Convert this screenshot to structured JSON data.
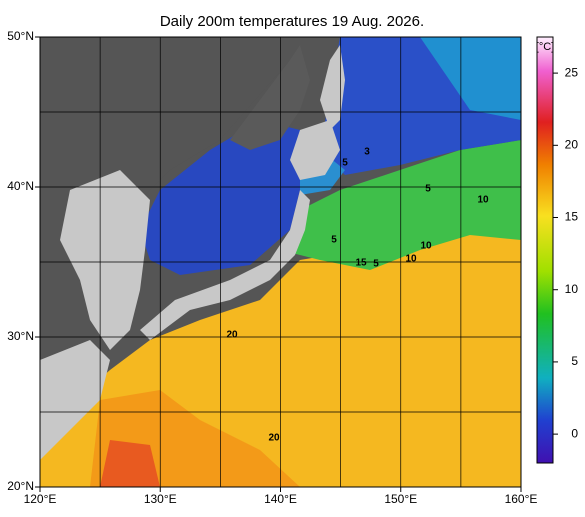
{
  "title": "Daily 200m temperatures 19 Aug. 2026.",
  "lat_labels": [
    {
      "value": 50,
      "label": "50°N"
    },
    {
      "value": 40,
      "label": "40°N"
    },
    {
      "value": 30,
      "label": "30°N"
    },
    {
      "value": 20,
      "label": "20°N"
    }
  ],
  "lon_labels": [
    {
      "value": 120,
      "label": "120°E"
    },
    {
      "value": 130,
      "label": "130°E"
    },
    {
      "value": 140,
      "label": "140°E"
    },
    {
      "value": 150,
      "label": "150°E"
    },
    {
      "value": 160,
      "label": "160°E"
    }
  ],
  "colorbar": {
    "unit": "[°C]",
    "range": [
      -2,
      27.5
    ],
    "ticks": [
      0,
      5,
      10,
      15,
      20,
      25
    ]
  },
  "contour_labels": [
    "5",
    "3",
    "5",
    "10",
    "5",
    "10",
    "15",
    "5",
    "10",
    "20",
    "20"
  ]
}
